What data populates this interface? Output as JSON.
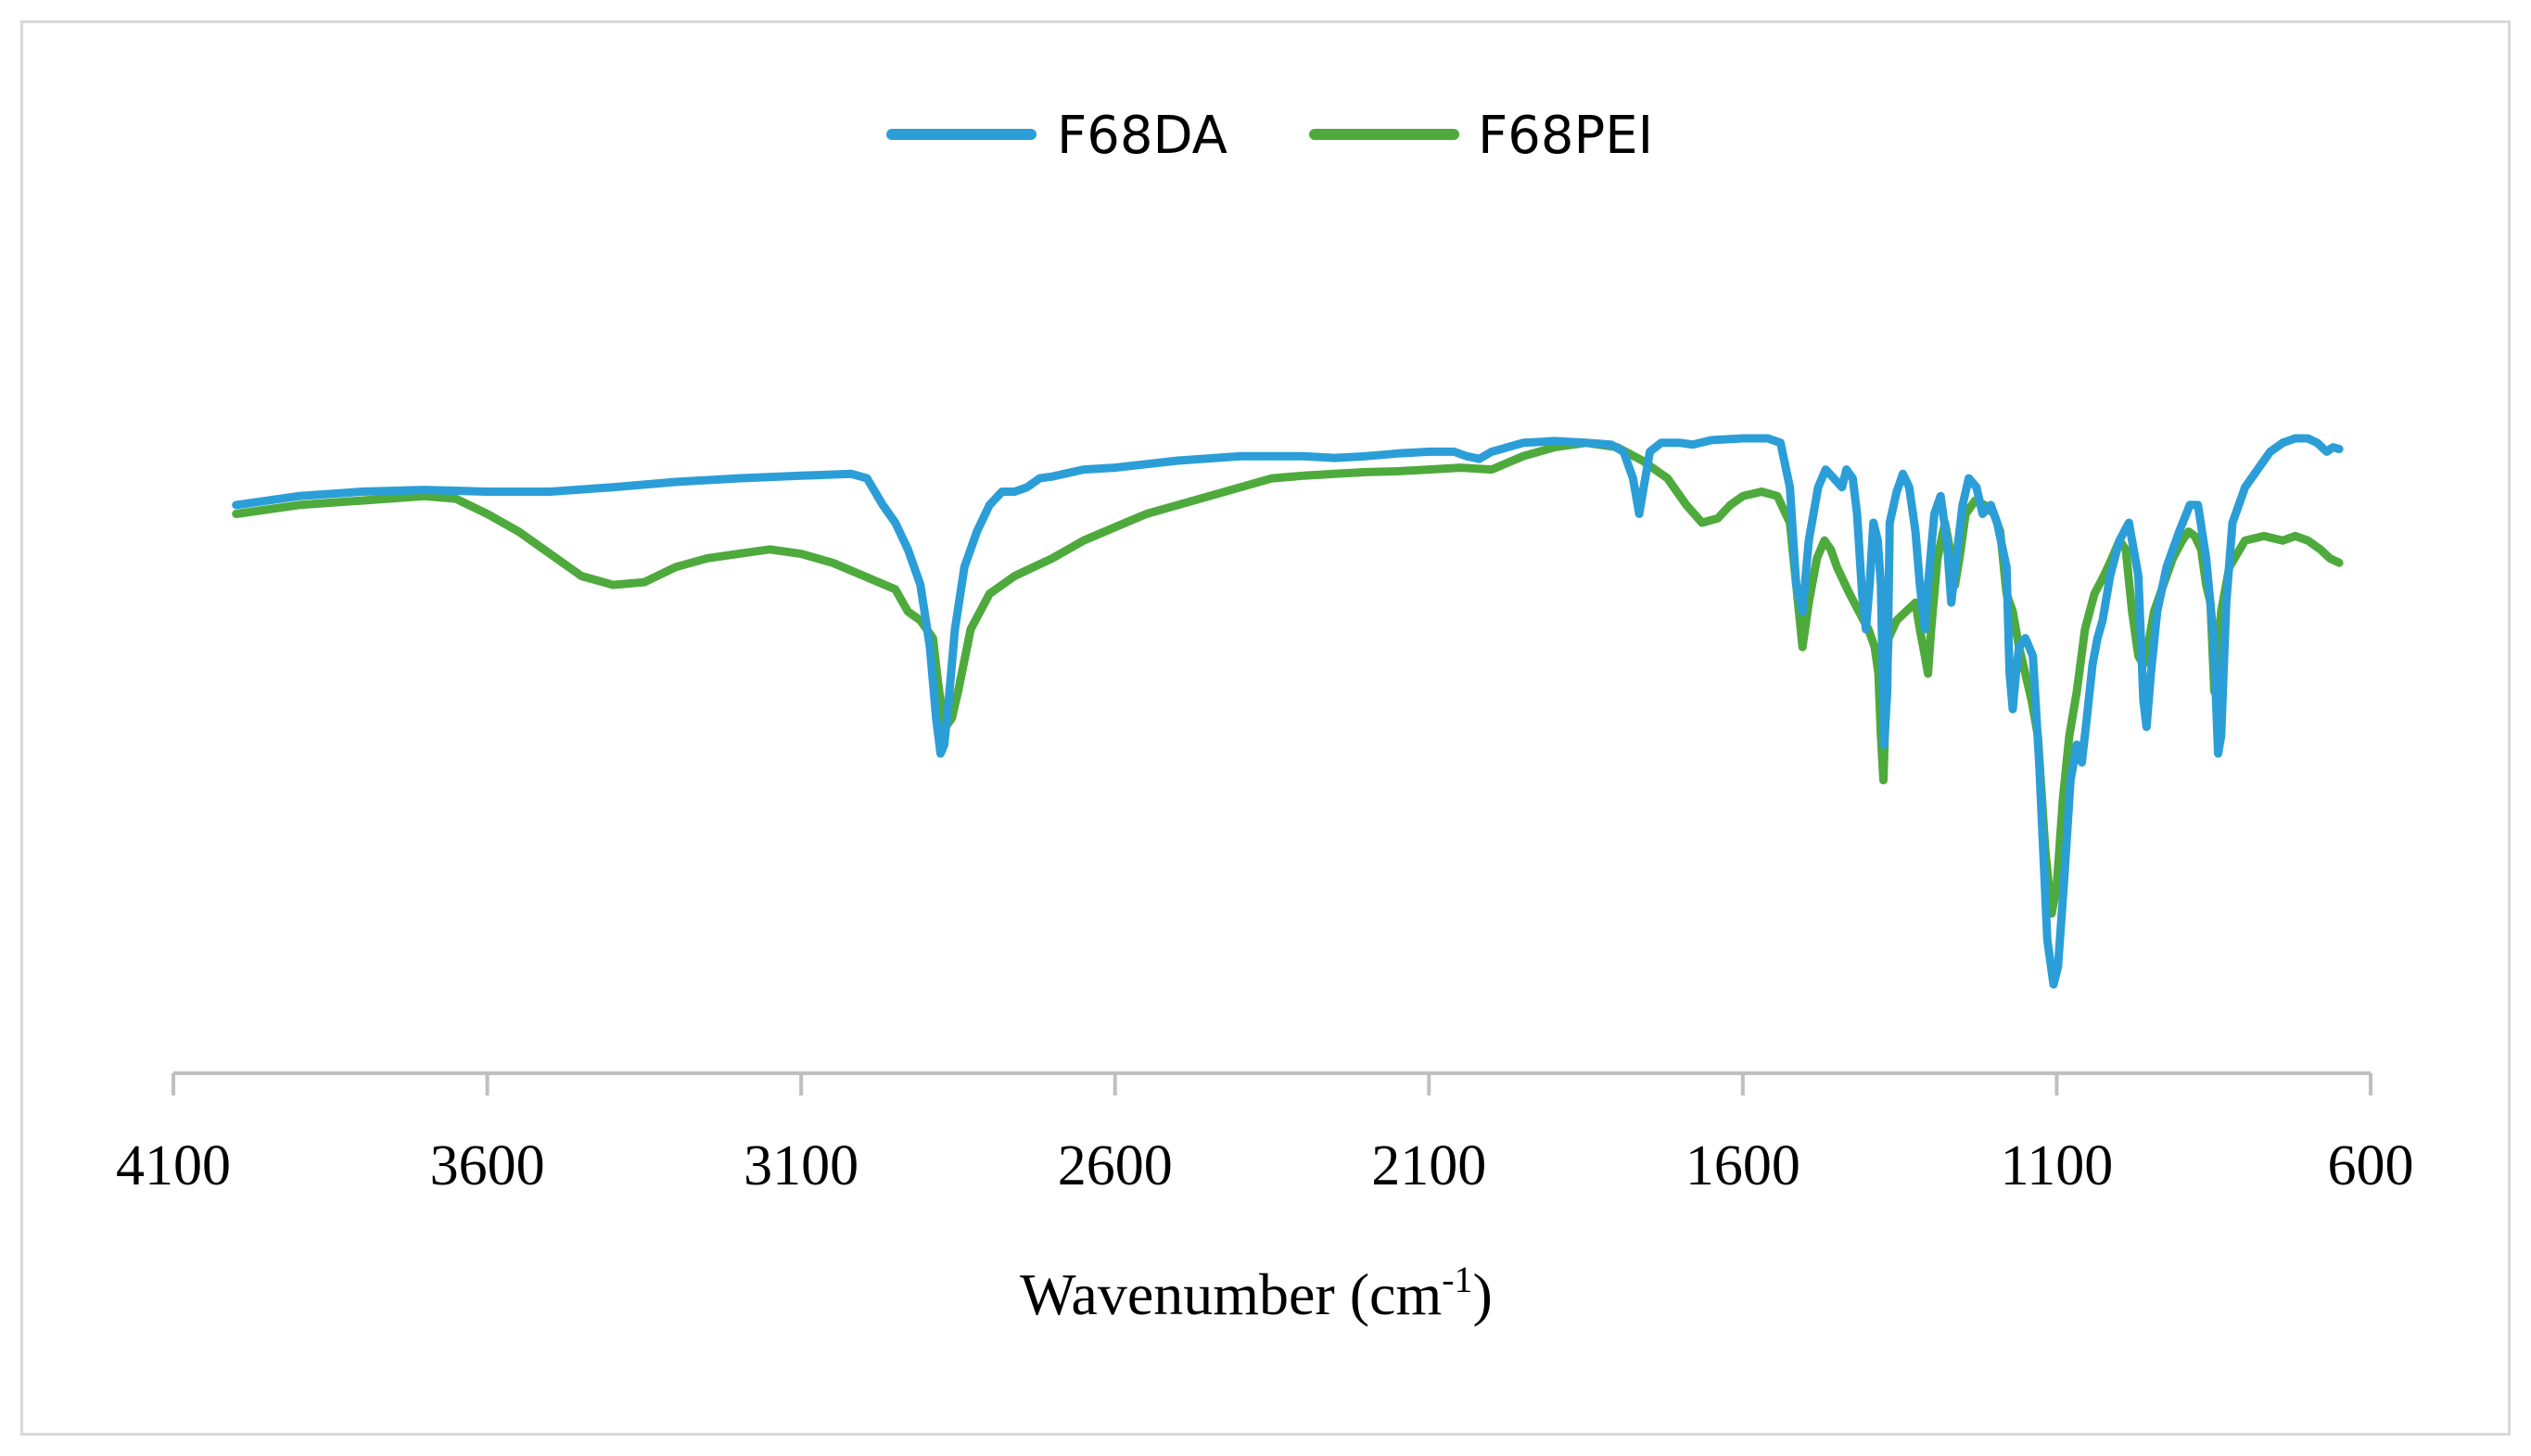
{
  "chart_data": {
    "type": "line",
    "title": "",
    "xlabel": "Wavenumber (cm",
    "xlabel_sup": "-1",
    "xlabel_close": ")",
    "ylabel": "",
    "xlim": [
      4100,
      600
    ],
    "ylim": [
      0,
      100
    ],
    "x_ticks": [
      "4100",
      "3600",
      "3100",
      "2600",
      "2100",
      "1600",
      "1100",
      "600"
    ],
    "grid": false,
    "legend": "top-center",
    "series": [
      {
        "name": "F68DA",
        "color": "#2b9ed8",
        "points": [
          [
            4000,
            64
          ],
          [
            3900,
            65
          ],
          [
            3800,
            65.5
          ],
          [
            3700,
            65.7
          ],
          [
            3600,
            65.5
          ],
          [
            3500,
            65.5
          ],
          [
            3400,
            66
          ],
          [
            3300,
            66.6
          ],
          [
            3200,
            67
          ],
          [
            3100,
            67.3
          ],
          [
            3020,
            67.5
          ],
          [
            2995,
            67
          ],
          [
            2970,
            64
          ],
          [
            2950,
            62
          ],
          [
            2930,
            59
          ],
          [
            2910,
            55
          ],
          [
            2895,
            48
          ],
          [
            2885,
            40
          ],
          [
            2878,
            36
          ],
          [
            2872,
            37
          ],
          [
            2865,
            42
          ],
          [
            2855,
            50
          ],
          [
            2840,
            57
          ],
          [
            2820,
            61
          ],
          [
            2800,
            64
          ],
          [
            2780,
            65.5
          ],
          [
            2760,
            65.5
          ],
          [
            2740,
            66
          ],
          [
            2720,
            67
          ],
          [
            2700,
            67.2
          ],
          [
            2650,
            68
          ],
          [
            2600,
            68.2
          ],
          [
            2500,
            69
          ],
          [
            2400,
            69.5
          ],
          [
            2300,
            69.5
          ],
          [
            2250,
            69.3
          ],
          [
            2200,
            69.5
          ],
          [
            2150,
            69.8
          ],
          [
            2100,
            70
          ],
          [
            2060,
            70
          ],
          [
            2040,
            69.5
          ],
          [
            2020,
            69.2
          ],
          [
            2000,
            70
          ],
          [
            1950,
            71
          ],
          [
            1900,
            71.2
          ],
          [
            1850,
            71
          ],
          [
            1810,
            70.8
          ],
          [
            1790,
            70
          ],
          [
            1775,
            67
          ],
          [
            1765,
            63
          ],
          [
            1758,
            66
          ],
          [
            1748,
            70
          ],
          [
            1730,
            71
          ],
          [
            1700,
            71
          ],
          [
            1680,
            70.8
          ],
          [
            1650,
            71.3
          ],
          [
            1600,
            71.5
          ],
          [
            1560,
            71.5
          ],
          [
            1540,
            71
          ],
          [
            1525,
            66
          ],
          [
            1515,
            55
          ],
          [
            1505,
            52
          ],
          [
            1495,
            60
          ],
          [
            1480,
            66
          ],
          [
            1468,
            68
          ],
          [
            1455,
            67
          ],
          [
            1442,
            66
          ],
          [
            1435,
            68
          ],
          [
            1425,
            67
          ],
          [
            1418,
            63
          ],
          [
            1410,
            54
          ],
          [
            1404,
            50
          ],
          [
            1398,
            55
          ],
          [
            1392,
            62
          ],
          [
            1385,
            60
          ],
          [
            1380,
            55
          ],
          [
            1375,
            37
          ],
          [
            1370,
            43
          ],
          [
            1366,
            62
          ],
          [
            1355,
            65.5
          ],
          [
            1345,
            67.5
          ],
          [
            1335,
            66
          ],
          [
            1325,
            61
          ],
          [
            1318,
            55
          ],
          [
            1310,
            50
          ],
          [
            1305,
            55
          ],
          [
            1295,
            63
          ],
          [
            1285,
            65
          ],
          [
            1275,
            60
          ],
          [
            1268,
            53
          ],
          [
            1260,
            58
          ],
          [
            1250,
            64
          ],
          [
            1240,
            67
          ],
          [
            1228,
            66
          ],
          [
            1218,
            63
          ],
          [
            1205,
            64
          ],
          [
            1195,
            62
          ],
          [
            1180,
            57
          ],
          [
            1175,
            45
          ],
          [
            1170,
            41
          ],
          [
            1165,
            45
          ],
          [
            1160,
            48
          ],
          [
            1150,
            49
          ],
          [
            1138,
            47
          ],
          [
            1128,
            35
          ],
          [
            1115,
            15
          ],
          [
            1105,
            10
          ],
          [
            1098,
            12
          ],
          [
            1088,
            22
          ],
          [
            1078,
            33
          ],
          [
            1068,
            37
          ],
          [
            1060,
            35
          ],
          [
            1052,
            40
          ],
          [
            1043,
            46
          ],
          [
            1035,
            49
          ],
          [
            1027,
            51
          ],
          [
            1015,
            56
          ],
          [
            1000,
            60
          ],
          [
            985,
            62
          ],
          [
            970,
            56
          ],
          [
            962,
            42
          ],
          [
            957,
            39
          ],
          [
            950,
            45
          ],
          [
            940,
            52
          ],
          [
            925,
            57
          ],
          [
            905,
            61
          ],
          [
            888,
            64
          ],
          [
            875,
            64
          ],
          [
            862,
            58
          ],
          [
            850,
            49
          ],
          [
            843,
            36
          ],
          [
            838,
            38
          ],
          [
            830,
            53
          ],
          [
            820,
            62
          ],
          [
            800,
            66
          ],
          [
            780,
            68
          ],
          [
            760,
            70
          ],
          [
            740,
            71
          ],
          [
            720,
            71.5
          ],
          [
            700,
            71.5
          ],
          [
            685,
            71
          ],
          [
            670,
            70
          ],
          [
            660,
            70.5
          ],
          [
            650,
            70.3
          ]
        ]
      },
      {
        "name": "F68PEI",
        "color": "#4eaa3c",
        "points": [
          [
            4000,
            63
          ],
          [
            3900,
            64
          ],
          [
            3800,
            64.5
          ],
          [
            3700,
            65
          ],
          [
            3650,
            64.7
          ],
          [
            3600,
            63
          ],
          [
            3550,
            61
          ],
          [
            3500,
            58.5
          ],
          [
            3450,
            56
          ],
          [
            3400,
            55
          ],
          [
            3350,
            55.3
          ],
          [
            3300,
            57
          ],
          [
            3250,
            58
          ],
          [
            3200,
            58.5
          ],
          [
            3150,
            59
          ],
          [
            3100,
            58.5
          ],
          [
            3050,
            57.5
          ],
          [
            3000,
            56
          ],
          [
            2950,
            54.5
          ],
          [
            2930,
            52
          ],
          [
            2910,
            51
          ],
          [
            2890,
            49
          ],
          [
            2882,
            44
          ],
          [
            2876,
            41
          ],
          [
            2870,
            39
          ],
          [
            2860,
            40
          ],
          [
            2850,
            43
          ],
          [
            2830,
            50
          ],
          [
            2800,
            54
          ],
          [
            2760,
            56
          ],
          [
            2700,
            58
          ],
          [
            2650,
            60
          ],
          [
            2600,
            61.5
          ],
          [
            2550,
            63
          ],
          [
            2500,
            64
          ],
          [
            2450,
            65
          ],
          [
            2400,
            66
          ],
          [
            2350,
            67
          ],
          [
            2300,
            67.3
          ],
          [
            2250,
            67.5
          ],
          [
            2200,
            67.7
          ],
          [
            2150,
            67.8
          ],
          [
            2100,
            68
          ],
          [
            2050,
            68.2
          ],
          [
            2000,
            68
          ],
          [
            1950,
            69.5
          ],
          [
            1900,
            70.5
          ],
          [
            1850,
            71
          ],
          [
            1800,
            70.5
          ],
          [
            1760,
            69
          ],
          [
            1720,
            67
          ],
          [
            1690,
            64
          ],
          [
            1665,
            62
          ],
          [
            1640,
            62.5
          ],
          [
            1620,
            64
          ],
          [
            1600,
            65
          ],
          [
            1570,
            65.5
          ],
          [
            1545,
            65
          ],
          [
            1525,
            62
          ],
          [
            1512,
            53
          ],
          [
            1505,
            48
          ],
          [
            1495,
            53
          ],
          [
            1482,
            58
          ],
          [
            1470,
            60
          ],
          [
            1460,
            59
          ],
          [
            1450,
            57
          ],
          [
            1430,
            54
          ],
          [
            1415,
            52
          ],
          [
            1400,
            50
          ],
          [
            1390,
            48
          ],
          [
            1384,
            45
          ],
          [
            1380,
            38
          ],
          [
            1376,
            33
          ],
          [
            1372,
            42
          ],
          [
            1368,
            49
          ],
          [
            1355,
            51
          ],
          [
            1340,
            52
          ],
          [
            1325,
            53
          ],
          [
            1318,
            50
          ],
          [
            1310,
            47
          ],
          [
            1305,
            45
          ],
          [
            1300,
            50
          ],
          [
            1290,
            58
          ],
          [
            1278,
            62
          ],
          [
            1270,
            59
          ],
          [
            1262,
            55
          ],
          [
            1255,
            58
          ],
          [
            1245,
            63
          ],
          [
            1230,
            64.5
          ],
          [
            1215,
            64
          ],
          [
            1200,
            63
          ],
          [
            1190,
            61
          ],
          [
            1180,
            54
          ],
          [
            1170,
            52
          ],
          [
            1160,
            48
          ],
          [
            1150,
            45
          ],
          [
            1140,
            42
          ],
          [
            1130,
            38
          ],
          [
            1118,
            25
          ],
          [
            1108,
            18
          ],
          [
            1100,
            21
          ],
          [
            1090,
            31
          ],
          [
            1080,
            38
          ],
          [
            1068,
            43
          ],
          [
            1055,
            50
          ],
          [
            1040,
            54
          ],
          [
            1025,
            56
          ],
          [
            1012,
            58
          ],
          [
            1000,
            60
          ],
          [
            990,
            59
          ],
          [
            980,
            52
          ],
          [
            970,
            47
          ],
          [
            962,
            46
          ],
          [
            955,
            48
          ],
          [
            945,
            52
          ],
          [
            930,
            55
          ],
          [
            915,
            58
          ],
          [
            900,
            60
          ],
          [
            890,
            61
          ],
          [
            880,
            60.5
          ],
          [
            870,
            59
          ],
          [
            862,
            55
          ],
          [
            855,
            53
          ],
          [
            849,
            43
          ],
          [
            845,
            46
          ],
          [
            838,
            52
          ],
          [
            825,
            57
          ],
          [
            800,
            60
          ],
          [
            770,
            60.5
          ],
          [
            740,
            60
          ],
          [
            720,
            60.5
          ],
          [
            700,
            60
          ],
          [
            680,
            59
          ],
          [
            665,
            58
          ],
          [
            650,
            57.5
          ]
        ]
      }
    ]
  }
}
